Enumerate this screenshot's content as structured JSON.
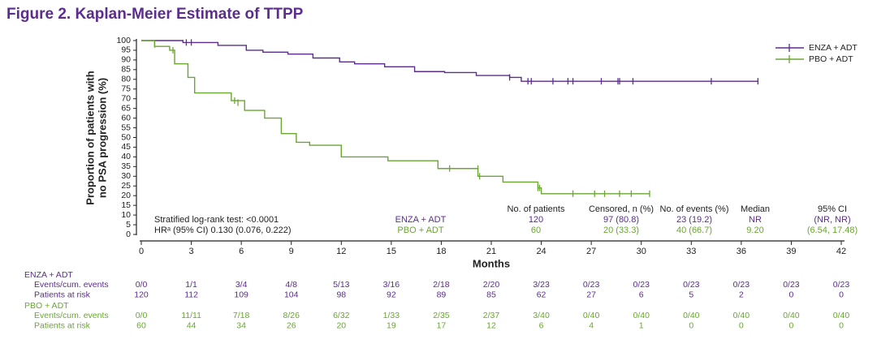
{
  "chart_data": {
    "type": "step",
    "title": "Figure 2. Kaplan-Meier Estimate of TTPP",
    "y_label": [
      "Proportion of patients with",
      "no PSA progression (%)"
    ],
    "x_label": "Months",
    "xlim": [
      0,
      42
    ],
    "xticks": [
      0,
      3,
      6,
      9,
      12,
      15,
      18,
      21,
      24,
      27,
      30,
      33,
      36,
      39,
      42
    ],
    "ylim": [
      0,
      100
    ],
    "yticks": [
      0,
      5,
      10,
      15,
      20,
      25,
      30,
      35,
      40,
      45,
      50,
      55,
      60,
      65,
      70,
      75,
      80,
      85,
      90,
      95,
      100
    ],
    "legend": "top-right",
    "series": [
      {
        "name": "ENZA + ADT",
        "color": "#5b2d8e",
        "x": [
          0,
          2.5,
          4.6,
          6.3,
          7.3,
          8.8,
          10.3,
          11.9,
          12.8,
          14.6,
          16.4,
          18.2,
          20.1,
          22.1,
          22.8,
          37.0
        ],
        "values": [
          100,
          99,
          97.5,
          95,
          94,
          93,
          91,
          89,
          88,
          86.5,
          84,
          83.5,
          82,
          81,
          79,
          79
        ],
        "censor_x": [
          2.7,
          3.0,
          22.1,
          23.2,
          23.4,
          24.7,
          25.6,
          25.9,
          27.6,
          28.6,
          28.7,
          29.5,
          34.2,
          37.0
        ],
        "censor_y": [
          99,
          99,
          81,
          79,
          79,
          79,
          79,
          79,
          79,
          79,
          79,
          79,
          79,
          79
        ]
      },
      {
        "name": "PBO + ADT",
        "color": "#6aa632",
        "x": [
          0,
          0.8,
          1.7,
          2.0,
          2.8,
          3.2,
          5.4,
          6.2,
          7.4,
          8.4,
          9.3,
          10.1,
          12.0,
          14.8,
          17.8,
          20.2,
          21.7,
          23.8,
          24.0,
          30.5
        ],
        "values": [
          100,
          97,
          95,
          88,
          81,
          73,
          69,
          64,
          60,
          52,
          47.5,
          46,
          40,
          38,
          34,
          30,
          27,
          24,
          21,
          21
        ],
        "censor_x": [
          0.8,
          1.9,
          5.6,
          5.8,
          18.5,
          20.2,
          20.3,
          23.8,
          23.9,
          25.9,
          27.2,
          27.8,
          28.7,
          29.4,
          30.5
        ],
        "censor_y": [
          98,
          95,
          69,
          68,
          34,
          34,
          30,
          24,
          24,
          21,
          21,
          21,
          21,
          21,
          21
        ]
      }
    ],
    "annotations": [
      "Stratified log-rank test: <0.0001",
      "HRᵃ (95% CI) 0.130 (0.076, 0.222)"
    ]
  },
  "stats_table": {
    "columns": [
      "No. of patients",
      "Censored, n (%)",
      "No. of events (%)",
      "Median",
      "95% CI"
    ],
    "rows": [
      {
        "name": "ENZA + ADT",
        "cells": [
          "120",
          "97 (80.8)",
          "23 (19.2)",
          "NR",
          "(NR, NR)"
        ]
      },
      {
        "name": "PBO + ADT",
        "cells": [
          "60",
          "20 (33.3)",
          "40 (66.7)",
          "9.20",
          "(6.54, 17.48)"
        ]
      }
    ]
  },
  "risk_table": {
    "groups": [
      {
        "name": "ENZA + ADT",
        "rows": [
          {
            "label": "Events/cum. events",
            "cells": [
              "0/0",
              "1/1",
              "3/4",
              "4/8",
              "5/13",
              "3/16",
              "2/18",
              "2/20",
              "3/23",
              "0/23",
              "0/23",
              "0/23",
              "0/23",
              "0/23",
              "0/23"
            ]
          },
          {
            "label": "Patients at risk",
            "cells": [
              120,
              112,
              109,
              104,
              98,
              92,
              89,
              85,
              62,
              27,
              6,
              5,
              2,
              0,
              0
            ]
          }
        ]
      },
      {
        "name": "PBO + ADT",
        "rows": [
          {
            "label": "Events/cum. events",
            "cells": [
              "0/0",
              "11/11",
              "7/18",
              "8/26",
              "6/32",
              "1/33",
              "2/35",
              "2/37",
              "3/40",
              "0/40",
              "0/40",
              "0/40",
              "0/40",
              "0/40",
              "0/40"
            ]
          },
          {
            "label": "Patients at risk",
            "cells": [
              60,
              44,
              34,
              26,
              20,
              19,
              17,
              12,
              6,
              4,
              1,
              0,
              0,
              0,
              0
            ]
          }
        ]
      }
    ]
  }
}
